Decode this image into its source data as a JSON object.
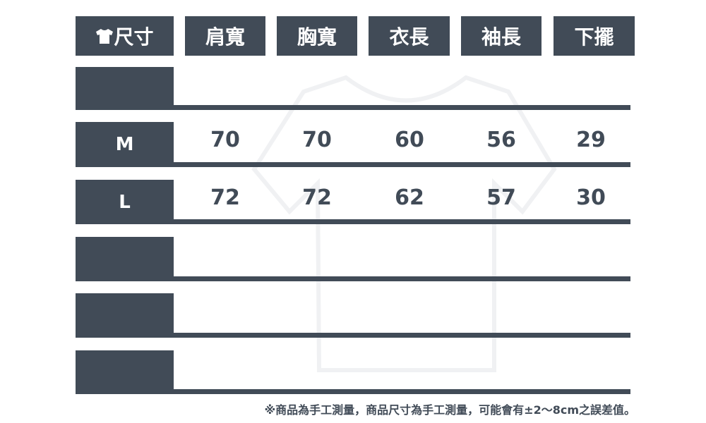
{
  "header": {
    "size_label": "尺寸",
    "columns": [
      "肩寬",
      "胸寬",
      "衣長",
      "袖長",
      "下擺"
    ]
  },
  "rows": [
    {
      "size": "",
      "values": [
        "",
        "",
        "",
        "",
        ""
      ]
    },
    {
      "size": "M",
      "values": [
        "70",
        "70",
        "60",
        "56",
        "29"
      ]
    },
    {
      "size": "L",
      "values": [
        "72",
        "72",
        "62",
        "57",
        "30"
      ]
    },
    {
      "size": "",
      "values": [
        "",
        "",
        "",
        "",
        ""
      ]
    },
    {
      "size": "",
      "values": [
        "",
        "",
        "",
        "",
        ""
      ]
    },
    {
      "size": "",
      "values": [
        "",
        "",
        "",
        "",
        ""
      ]
    }
  ],
  "note": "※商品為手工測量，商品尺寸為手工測量，可能會有±2～8cm之誤差值。",
  "colors": {
    "primary": "#414b57",
    "background": "#ffffff"
  },
  "icons": {
    "size_header": "tshirt-icon"
  }
}
